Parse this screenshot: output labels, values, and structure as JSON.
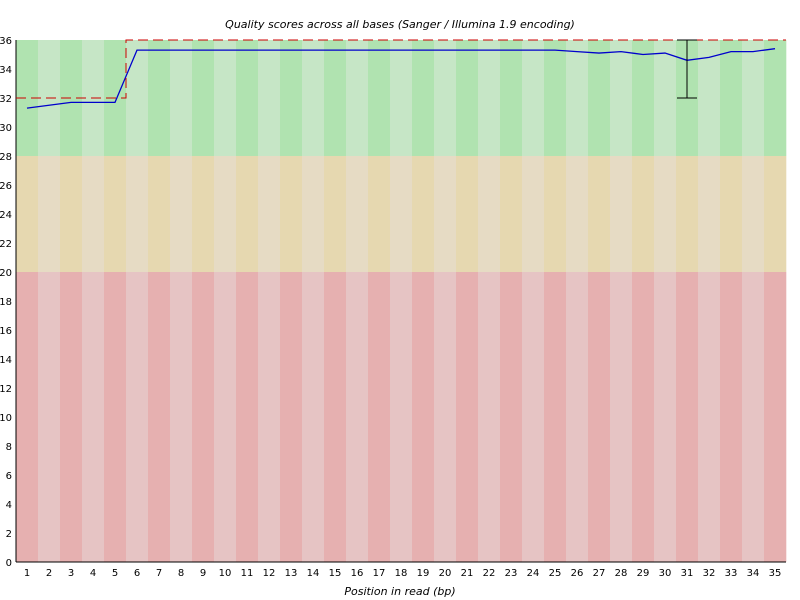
{
  "chart_data": {
    "type": "line",
    "title": "Quality scores across all bases (Sanger / Illumina 1.9 encoding)",
    "xlabel": "Position in read (bp)",
    "ylabel": "",
    "ylim": [
      0,
      36
    ],
    "y_ticks": [
      0,
      2,
      4,
      6,
      8,
      10,
      12,
      14,
      16,
      18,
      20,
      22,
      24,
      26,
      28,
      30,
      32,
      34,
      36
    ],
    "categories": [
      "1",
      "2",
      "3",
      "4",
      "5",
      "6",
      "7",
      "8",
      "9",
      "10",
      "11",
      "12",
      "13",
      "14",
      "15",
      "16",
      "17",
      "18",
      "19",
      "20",
      "21",
      "22",
      "23",
      "24",
      "25",
      "26",
      "27",
      "28",
      "29",
      "30",
      "31",
      "32",
      "33",
      "34",
      "35"
    ],
    "series": [
      {
        "role": "mean",
        "color": "#0000cc",
        "values": [
          31.3,
          31.5,
          31.7,
          31.7,
          31.7,
          35.3,
          35.3,
          35.3,
          35.3,
          35.3,
          35.3,
          35.3,
          35.3,
          35.3,
          35.3,
          35.3,
          35.3,
          35.3,
          35.3,
          35.3,
          35.3,
          35.3,
          35.3,
          35.3,
          35.3,
          35.2,
          35.1,
          35.2,
          35.0,
          35.1,
          34.6,
          34.8,
          35.2,
          35.2,
          35.4
        ]
      },
      {
        "role": "median",
        "color": "#cc0000",
        "values": [
          32,
          32,
          32,
          32,
          32,
          36,
          36,
          36,
          36,
          36,
          36,
          36,
          36,
          36,
          36,
          36,
          36,
          36,
          36,
          36,
          36,
          36,
          36,
          36,
          36,
          36,
          36,
          36,
          36,
          36,
          36,
          36,
          36,
          36,
          36
        ]
      }
    ],
    "error_bars": [
      {
        "position": "31",
        "low": 32,
        "high": 36
      }
    ],
    "bands": [
      {
        "from": 28,
        "to": 36,
        "color_dark": "#b0e3b0",
        "color_light": "#c6e6c6"
      },
      {
        "from": 20,
        "to": 28,
        "color_dark": "#e6d8b0",
        "color_light": "#e6dbc4"
      },
      {
        "from": 0,
        "to": 20,
        "color_dark": "#e6b0b0",
        "color_light": "#e6c4c4"
      }
    ],
    "grid": false,
    "legend": "none"
  }
}
